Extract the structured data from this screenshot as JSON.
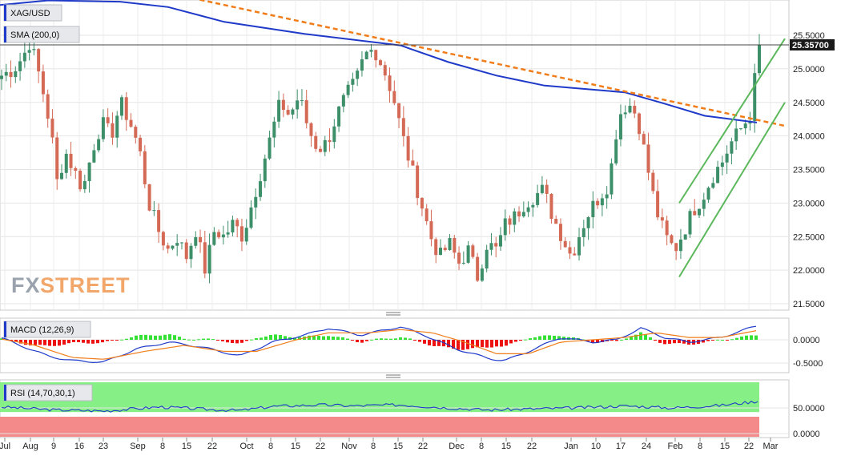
{
  "chart_data": {
    "type": "candlestick",
    "symbol": "XAG/USD",
    "indicator_labels": {
      "sma": "SMA (200,0)",
      "macd": "MACD (12,26,9)",
      "rsi": "RSI (14,70,30,1)"
    },
    "price_axis_ticks": [
      "25.5000",
      "25.0000",
      "24.5000",
      "24.0000",
      "23.5000",
      "23.0000",
      "22.5000",
      "22.0000",
      "21.5000"
    ],
    "price_axis_values": [
      25.5,
      25.0,
      24.5,
      24.0,
      23.5,
      23.0,
      22.5,
      22.0,
      21.5
    ],
    "price_ylim": [
      21.4,
      26.1
    ],
    "current_price_label": "25.35700",
    "current_price": 25.357,
    "macd_axis_ticks": [
      "0.0000",
      "-0.5000"
    ],
    "macd_axis_values": [
      0.0,
      -0.5
    ],
    "macd_ylim": [
      -0.6,
      0.4
    ],
    "rsi_axis_ticks": [
      "50.0000",
      "0.0000"
    ],
    "rsi_axis_values": [
      50,
      0
    ],
    "rsi_ylim": [
      0,
      100
    ],
    "rsi_overbought": 70,
    "rsi_oversold": 30,
    "x_tick_labels": [
      "Jul",
      "Aug",
      "9",
      "16",
      "23",
      "Sep",
      "8",
      "15",
      "22",
      "Oct",
      "8",
      "15",
      "22",
      "Nov",
      "8",
      "15",
      "22",
      "Dec",
      "8",
      "15",
      "22",
      "Jan",
      "10",
      "17",
      "24",
      "Feb",
      "8",
      "15",
      "22",
      "Mar"
    ],
    "watermark": {
      "fx": "FX",
      "street": "STREET"
    },
    "colors": {
      "up": "#3d8f6a",
      "down": "#d46a55",
      "sma": "#1f3ac9",
      "trend": "#f07d1a",
      "channel": "#5cb85c",
      "macd_pos": "#35e035",
      "macd_neg": "#ee1111",
      "macd_line": "#1f3ac9",
      "signal_line": "#f07d1a",
      "rsi_ob": "#86f086",
      "rsi_os": "#f58a8a"
    }
  }
}
